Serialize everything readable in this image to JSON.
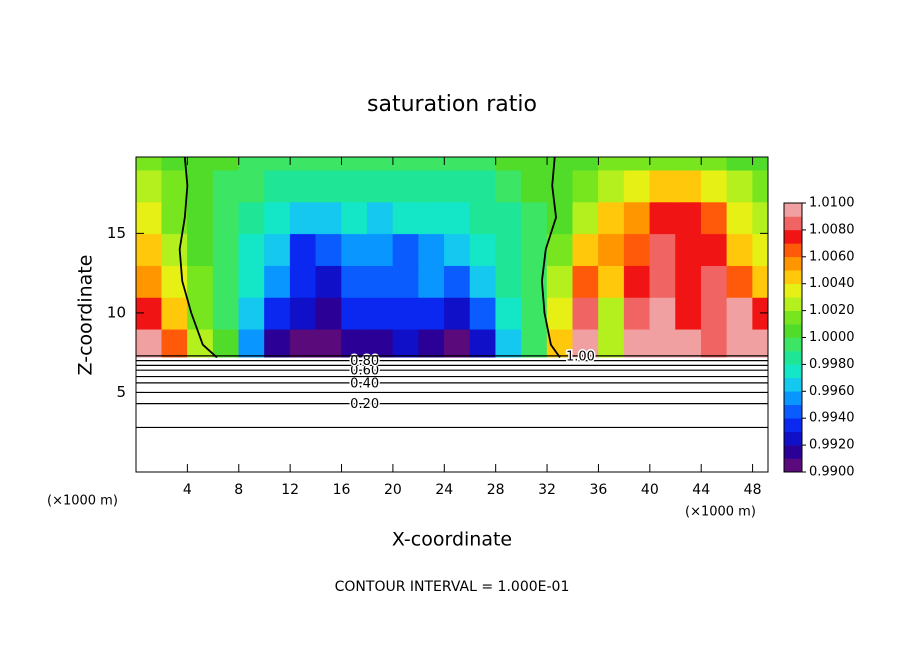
{
  "chart_data": {
    "type": "contour",
    "title": "saturation ratio",
    "x_label": "X-coordinate",
    "y_label": "Z-coordinate",
    "x_unit": "(×1000 m)",
    "y_unit": "(×1000 m)",
    "footer": "CONTOUR INTERVAL = 1.000E-01",
    "xlim": [
      0,
      49.2
    ],
    "ylim": [
      0,
      19.8
    ],
    "xticks": [
      4,
      8,
      12,
      16,
      20,
      24,
      28,
      32,
      36,
      40,
      44,
      48
    ],
    "yticks": [
      5,
      10,
      15
    ],
    "surface_height": 7.2,
    "x": [
      1,
      3,
      5,
      7,
      9,
      11,
      13,
      15,
      17,
      19,
      21,
      23,
      25,
      27,
      29,
      31,
      33,
      35,
      37,
      39,
      41,
      43,
      45,
      47,
      49
    ],
    "y": [
      8,
      10,
      12,
      14,
      16,
      18,
      20
    ],
    "z": [
      [
        1.009,
        1.006,
        1.002,
        1.0,
        0.995,
        0.991,
        0.99,
        0.99,
        0.991,
        0.991,
        0.992,
        0.991,
        0.99,
        0.992,
        0.996,
        0.999,
        1.004,
        1.009,
        1.002,
        1.009,
        1.01,
        1.009,
        1.008,
        1.009,
        1.009
      ],
      [
        1.007,
        1.004,
        1.001,
        0.999,
        0.996,
        0.993,
        0.992,
        0.9915,
        0.993,
        0.993,
        0.993,
        0.993,
        0.992,
        0.994,
        0.997,
        0.9995,
        1.003,
        1.008,
        1.002,
        1.008,
        1.009,
        1.007,
        1.008,
        1.009,
        1.007
      ],
      [
        1.005,
        1.003,
        1.001,
        0.999,
        0.997,
        0.995,
        0.993,
        0.9925,
        0.994,
        0.994,
        0.994,
        0.995,
        0.994,
        0.996,
        0.998,
        0.9995,
        1.002,
        1.006,
        1.004,
        1.007,
        1.008,
        1.007,
        1.008,
        1.006,
        1.004
      ],
      [
        1.004,
        1.002,
        1.0005,
        0.999,
        0.9975,
        0.996,
        0.9935,
        0.994,
        0.995,
        0.995,
        0.9945,
        0.995,
        0.996,
        0.997,
        0.998,
        0.9995,
        1.001,
        1.004,
        1.005,
        1.006,
        1.008,
        1.007,
        1.007,
        1.004,
        1.003
      ],
      [
        1.003,
        1.0015,
        1.0,
        0.999,
        0.998,
        0.997,
        0.996,
        0.9965,
        0.997,
        0.9965,
        0.997,
        0.997,
        0.997,
        0.998,
        0.9985,
        0.9995,
        1.0,
        1.002,
        1.004,
        1.005,
        1.007,
        1.007,
        1.006,
        1.003,
        1.002
      ],
      [
        1.002,
        1.001,
        1.0,
        0.9995,
        0.999,
        0.9985,
        0.998,
        0.998,
        0.998,
        0.998,
        0.998,
        0.998,
        0.998,
        0.9985,
        0.999,
        1.0,
        1.0,
        1.001,
        1.002,
        1.003,
        1.004,
        1.004,
        1.003,
        1.002,
        1.001
      ],
      [
        1.001,
        1.0005,
        1.0,
        1.0,
        0.9995,
        0.9995,
        0.9995,
        0.999,
        0.999,
        0.9995,
        0.9995,
        0.999,
        0.9995,
        0.9995,
        1.0,
        1.0,
        1.0,
        1.0005,
        1.001,
        1.001,
        1.0015,
        1.001,
        1.001,
        1.0005,
        1.0
      ]
    ],
    "colorbar": {
      "lim": [
        0.99,
        1.01
      ],
      "ticks": [
        {
          "value": 0.99,
          "label": "0.9900"
        },
        {
          "value": 0.992,
          "label": "0.9920"
        },
        {
          "value": 0.994,
          "label": "0.9940"
        },
        {
          "value": 0.996,
          "label": "0.9960"
        },
        {
          "value": 0.998,
          "label": "0.9980"
        },
        {
          "value": 1.0,
          "label": "1.0000"
        },
        {
          "value": 1.002,
          "label": "1.0020"
        },
        {
          "value": 1.004,
          "label": "1.0040"
        },
        {
          "value": 1.006,
          "label": "1.0060"
        },
        {
          "value": 1.008,
          "label": "1.0080"
        },
        {
          "value": 1.01,
          "label": "1.0100"
        }
      ],
      "colors": [
        "#5a0a7a",
        "#2a0096",
        "#1010c8",
        "#0a28f0",
        "#0a5cff",
        "#0a96ff",
        "#14c8f0",
        "#14e6c8",
        "#1ee696",
        "#3ce664",
        "#50dc28",
        "#78e61e",
        "#b4f01e",
        "#e6f014",
        "#ffc80a",
        "#ff9600",
        "#ff5a0a",
        "#f01414",
        "#f06464",
        "#f0a0a0"
      ]
    },
    "contours": [
      {
        "level": 0.1,
        "height": 2.8
      },
      {
        "level": 0.2,
        "label": "0.20",
        "height": 4.3
      },
      {
        "level": 0.3,
        "height": 5.0
      },
      {
        "level": 0.4,
        "label": "0.40",
        "height": 5.6
      },
      {
        "level": 0.5,
        "height": 6.0
      },
      {
        "level": 0.6,
        "label": "0.60",
        "height": 6.4
      },
      {
        "level": 0.7,
        "height": 6.7
      },
      {
        "level": 0.8,
        "label": "0.80",
        "height": 7.0
      },
      {
        "level": 1.0,
        "label": "1.00",
        "height": 7.3
      }
    ],
    "isolines": [
      {
        "x": [
          3.8,
          4.0,
          3.8,
          3.4,
          3.6,
          4.3,
          5.2,
          6.3
        ],
        "y": [
          19.8,
          18,
          16,
          14,
          12,
          10,
          8,
          7.2
        ]
      },
      {
        "x": [
          32.6,
          32.4,
          32.7,
          31.9,
          31.6,
          31.8,
          32.3,
          33.0
        ],
        "y": [
          19.8,
          18,
          16,
          14,
          12,
          10,
          8,
          7.2
        ]
      }
    ]
  }
}
